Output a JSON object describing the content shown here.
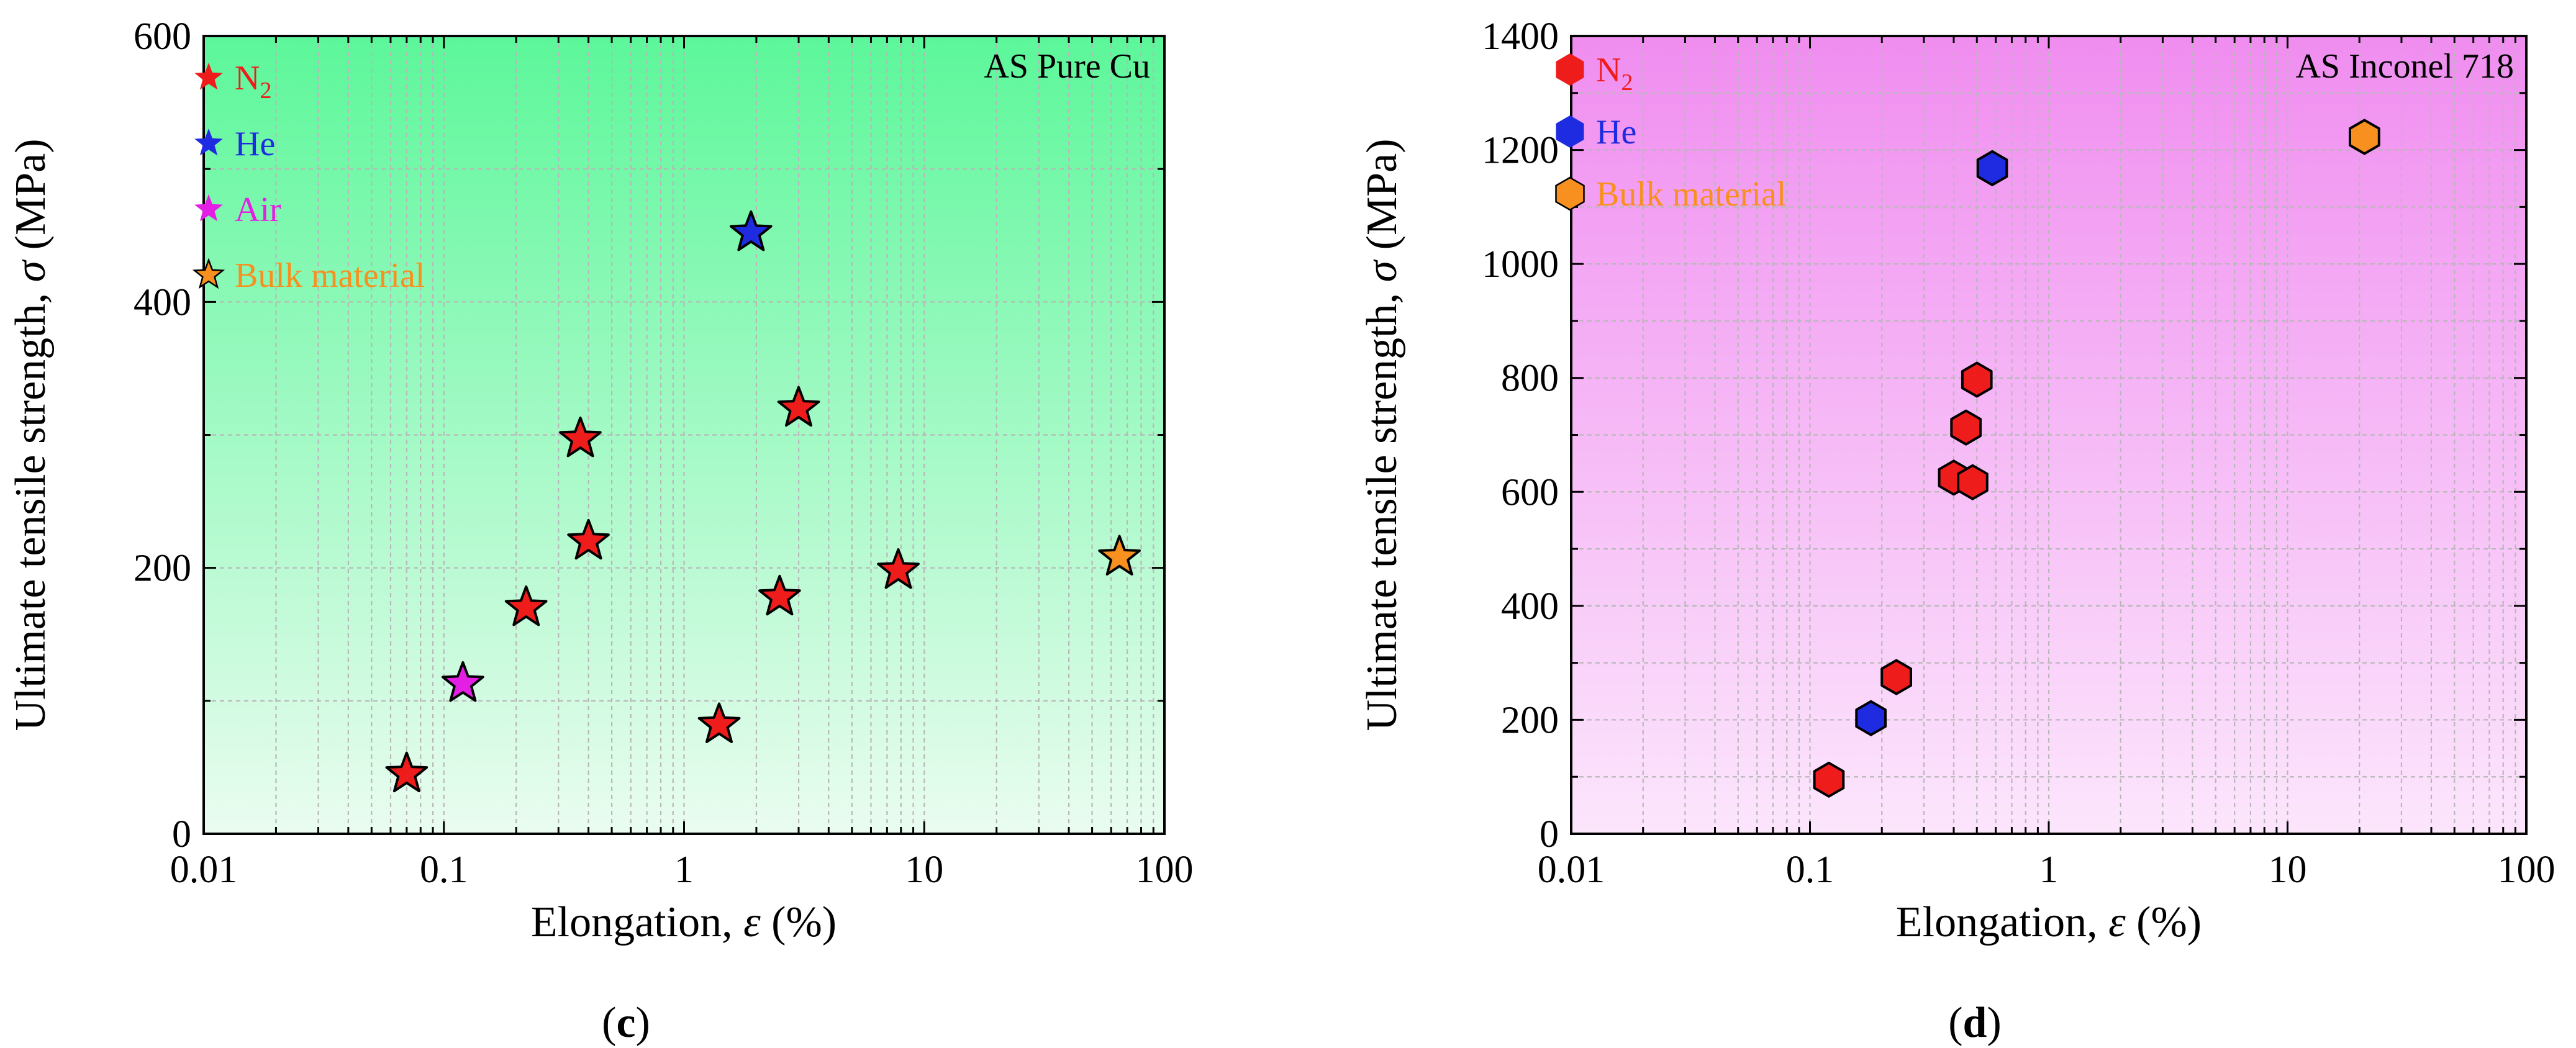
{
  "figure": {
    "panel_label_left": "c",
    "panel_label_right": "d"
  },
  "chart_data": [
    {
      "type": "scatter",
      "panel": "c",
      "annotation": "AS Pure Cu",
      "xlabel": "Elongation, ε (%)",
      "ylabel": "Ultimate tensile strength, σ (MPa)",
      "xscale": "log",
      "xlim": [
        0.01,
        100
      ],
      "ylim": [
        0,
        600
      ],
      "xticks": [
        0.01,
        0.1,
        1,
        10,
        100
      ],
      "xtick_labels": [
        "0.01",
        "0.1",
        "1",
        "10",
        "100"
      ],
      "yticks": [
        0,
        200,
        400,
        600
      ],
      "ytick_labels": [
        "0",
        "200",
        "400",
        "600"
      ],
      "grid": true,
      "background": {
        "top": "#5cf79a",
        "bottom": "#eafcf0"
      },
      "legend_position": "top-left",
      "marker": "star",
      "series": [
        {
          "name": "N",
          "sub": "2",
          "color": "#ef1c1c",
          "points": [
            [
              0.07,
              45
            ],
            [
              0.22,
              170
            ],
            [
              0.37,
              297
            ],
            [
              0.4,
              220
            ],
            [
              1.4,
              82
            ],
            [
              2.5,
              178
            ],
            [
              3.0,
              320
            ],
            [
              7.8,
              198
            ]
          ]
        },
        {
          "name": "He",
          "sub": "",
          "color": "#1f2be0",
          "points": [
            [
              1.9,
              452
            ]
          ]
        },
        {
          "name": "Air",
          "sub": "",
          "color": "#e41ee4",
          "points": [
            [
              0.12,
              113
            ]
          ]
        },
        {
          "name": "Bulk material",
          "sub": "",
          "color": "#f7901e",
          "points": [
            [
              65,
              208
            ]
          ]
        }
      ]
    },
    {
      "type": "scatter",
      "panel": "d",
      "annotation": "AS Inconel 718",
      "xlabel": "Elongation, ε (%)",
      "ylabel": "Ultimate tensile strength, σ (MPa)",
      "xscale": "log",
      "xlim": [
        0.01,
        100
      ],
      "ylim": [
        0,
        1400
      ],
      "xticks": [
        0.01,
        0.1,
        1,
        10,
        100
      ],
      "xtick_labels": [
        "0.01",
        "0.1",
        "1",
        "10",
        "100"
      ],
      "yticks": [
        0,
        200,
        400,
        600,
        800,
        1000,
        1200,
        1400
      ],
      "ytick_labels": [
        "0",
        "200",
        "400",
        "600",
        "800",
        "1000",
        "1200",
        "1400"
      ],
      "grid": true,
      "background": {
        "top": "#f08df0",
        "bottom": "#fce6fc"
      },
      "legend_position": "top-left",
      "marker": "hexagon",
      "series": [
        {
          "name": "N",
          "sub": "2",
          "color": "#ef1c1c",
          "points": [
            [
              0.12,
              95
            ],
            [
              0.23,
              275
            ],
            [
              0.4,
              625
            ],
            [
              0.45,
              713
            ],
            [
              0.48,
              617
            ],
            [
              0.5,
              797
            ]
          ]
        },
        {
          "name": "He",
          "sub": "",
          "color": "#1f2be0",
          "points": [
            [
              0.18,
              203
            ],
            [
              0.58,
              1168
            ]
          ]
        },
        {
          "name": "Bulk material",
          "sub": "",
          "color": "#f7901e",
          "points": [
            [
              21,
              1223
            ]
          ]
        }
      ]
    }
  ]
}
